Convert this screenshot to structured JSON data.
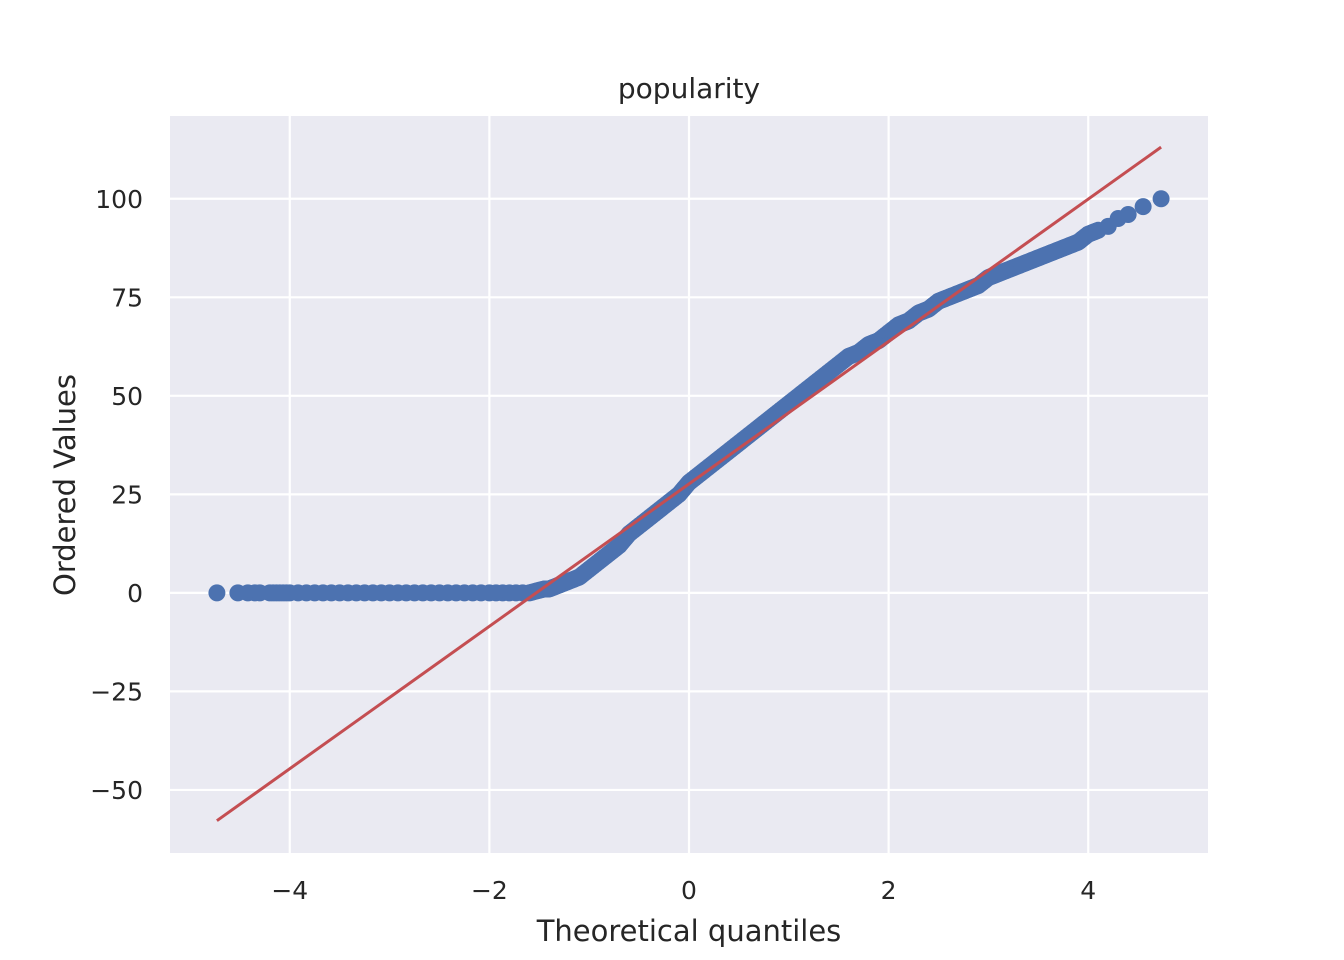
{
  "chart_data": {
    "type": "scatter",
    "title": "popularity",
    "xlabel": "Theoretical quantiles",
    "ylabel": "Ordered Values",
    "xlim": [
      -5.2,
      5.2
    ],
    "ylim": [
      -66,
      121
    ],
    "x_ticks": [
      -4,
      -2,
      0,
      2,
      4
    ],
    "x_tick_labels": [
      "−4",
      "−2",
      "0",
      "2",
      "4"
    ],
    "y_ticks": [
      -50,
      -25,
      0,
      25,
      50,
      75,
      100
    ],
    "y_tick_labels": [
      "−50",
      "−25",
      "0",
      "25",
      "50",
      "75",
      "100"
    ],
    "grid": true,
    "legend": "none",
    "colors": {
      "background": "#eaeaf2",
      "grid": "#ffffff",
      "points": "#4c72b0",
      "fit_line": "#c44e52"
    },
    "series": [
      {
        "kind": "ordered-values-points",
        "x": [
          -4.73,
          -4.52,
          -4.42,
          -4.35,
          -4.3,
          -4.2,
          -4.0,
          -3.5,
          -3.0,
          -2.5,
          -2.0,
          -1.6,
          -1.45,
          -1.4,
          -1.3,
          -1.2,
          -1.1,
          -1.0,
          -0.9,
          -0.8,
          -0.7,
          -0.6,
          -0.5,
          -0.4,
          -0.3,
          -0.2,
          -0.1,
          0.0,
          0.1,
          0.2,
          0.3,
          0.4,
          0.5,
          0.6,
          0.7,
          0.8,
          0.9,
          1.0,
          1.1,
          1.2,
          1.3,
          1.4,
          1.5,
          1.6,
          1.7,
          1.8,
          1.9,
          2.0,
          2.1,
          2.2,
          2.3,
          2.4,
          2.5,
          2.6,
          2.7,
          2.8,
          2.9,
          3.0,
          3.1,
          3.2,
          3.3,
          3.4,
          3.5,
          3.6,
          3.7,
          3.8,
          3.9,
          4.0,
          4.1,
          4.2,
          4.3,
          4.4,
          4.55,
          4.73
        ],
        "y": [
          0,
          0,
          0,
          0,
          0,
          0,
          0,
          0,
          0,
          0,
          0,
          0,
          1,
          1,
          2,
          3,
          4,
          6,
          8,
          10,
          12,
          15,
          17,
          19,
          21,
          23,
          25,
          28,
          30,
          32,
          34,
          36,
          38,
          40,
          42,
          44,
          46,
          48,
          50,
          52,
          54,
          56,
          58,
          60,
          61,
          63,
          64,
          66,
          68,
          69,
          71,
          72,
          74,
          75,
          76,
          77,
          78,
          80,
          81,
          82,
          83,
          84,
          85,
          86,
          87,
          88,
          89,
          91,
          92,
          93,
          95,
          96,
          98,
          100
        ]
      },
      {
        "kind": "fit-line",
        "x": [
          -4.73,
          4.73
        ],
        "y": [
          -57.8,
          113.1
        ]
      }
    ]
  }
}
